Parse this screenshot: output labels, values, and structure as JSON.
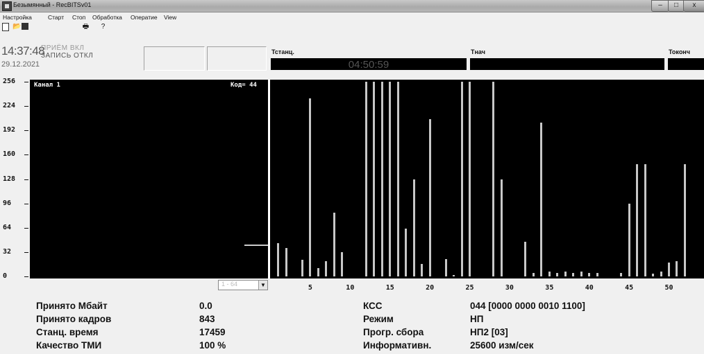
{
  "window": {
    "title": "Безымянный - RecBITSv01",
    "min": "–",
    "max": "□",
    "close": "x"
  },
  "menu": [
    "Настройка",
    "Старт",
    "Стоп",
    "Обработка",
    "Оператие",
    "View"
  ],
  "toolbar": {
    "open_icon": "📂",
    "print_icon": "🖶",
    "help_icon": "?"
  },
  "header": {
    "time": "14:37:48",
    "date": "29.12.2021",
    "status_line1": "ПРИЁМ  ВКЛ",
    "status_line2": "ЗАПИСЬ ОТКЛ",
    "tstanc_label": "Тстанц.",
    "tstanc_value": "04:50:59",
    "tnach_label": "Тнач",
    "tokonch_label": "Токонч"
  },
  "channel": {
    "label": "Канал 1",
    "code_label": "Код= 44"
  },
  "range_select": {
    "value": "1 - 64",
    "arrow": "▼"
  },
  "chart_data": {
    "type": "bar",
    "ylim": [
      0,
      256
    ],
    "yticks": [
      0,
      32,
      64,
      96,
      128,
      160,
      192,
      224,
      256
    ],
    "xticks": [
      5,
      10,
      15,
      20,
      25,
      30,
      35,
      40,
      45,
      50
    ],
    "left_channel_value": 44,
    "bars": [
      {
        "x": 1,
        "y": 44
      },
      {
        "x": 2,
        "y": 37
      },
      {
        "x": 4,
        "y": 22
      },
      {
        "x": 5,
        "y": 234
      },
      {
        "x": 6,
        "y": 11
      },
      {
        "x": 7,
        "y": 20
      },
      {
        "x": 8,
        "y": 84
      },
      {
        "x": 9,
        "y": 32
      },
      {
        "x": 12,
        "y": 256
      },
      {
        "x": 13,
        "y": 256
      },
      {
        "x": 14,
        "y": 256
      },
      {
        "x": 15,
        "y": 256
      },
      {
        "x": 16,
        "y": 256
      },
      {
        "x": 17,
        "y": 63
      },
      {
        "x": 18,
        "y": 128
      },
      {
        "x": 19,
        "y": 16
      },
      {
        "x": 20,
        "y": 207
      },
      {
        "x": 22,
        "y": 23
      },
      {
        "x": 23,
        "y": 2
      },
      {
        "x": 24,
        "y": 256
      },
      {
        "x": 25,
        "y": 256
      },
      {
        "x": 28,
        "y": 256
      },
      {
        "x": 29,
        "y": 128
      },
      {
        "x": 32,
        "y": 46
      },
      {
        "x": 33,
        "y": 5
      },
      {
        "x": 34,
        "y": 202
      },
      {
        "x": 35,
        "y": 6
      },
      {
        "x": 36,
        "y": 5
      },
      {
        "x": 37,
        "y": 6
      },
      {
        "x": 38,
        "y": 5
      },
      {
        "x": 39,
        "y": 6
      },
      {
        "x": 40,
        "y": 5
      },
      {
        "x": 41,
        "y": 5
      },
      {
        "x": 44,
        "y": 5
      },
      {
        "x": 45,
        "y": 96
      },
      {
        "x": 46,
        "y": 148
      },
      {
        "x": 47,
        "y": 148
      },
      {
        "x": 48,
        "y": 4
      },
      {
        "x": 49,
        "y": 6
      },
      {
        "x": 50,
        "y": 18
      },
      {
        "x": 51,
        "y": 20
      },
      {
        "x": 52,
        "y": 148
      }
    ]
  },
  "stats": {
    "received_mb_label": "Принято Мбайт",
    "received_mb": "0.0",
    "frames_label": "Принято кадров",
    "frames": "843",
    "station_time_label": "Станц. время",
    "station_time": "17459",
    "tmi_quality_label": "Качество ТМИ",
    "tmi_quality": "100 %",
    "kss_label": "КСС",
    "kss": "044 [0000 0000 0010 1100]",
    "mode_label": "Режим",
    "mode": "НП",
    "program_label": "Прогр. сбора",
    "program": "НП2 [03]",
    "inform_label": "Информативн.",
    "inform": "25600 изм/сек"
  }
}
